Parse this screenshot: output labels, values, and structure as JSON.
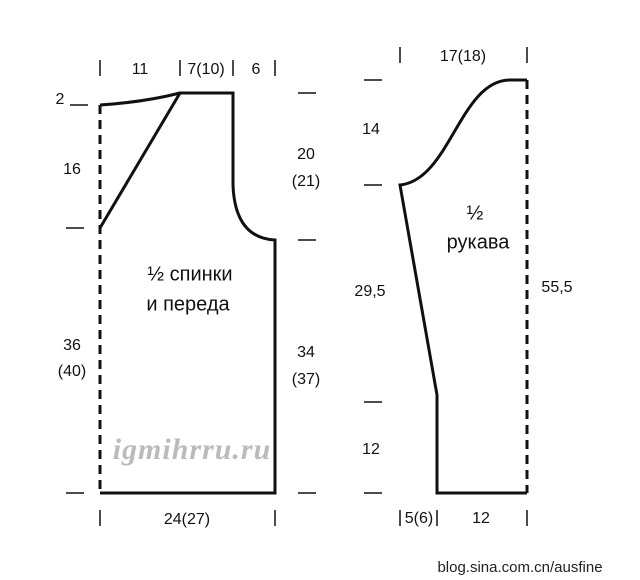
{
  "body_piece": {
    "top_labels": [
      "11",
      "7(10)",
      "6"
    ],
    "left_labels": [
      "2",
      "16",
      "36",
      "(40)"
    ],
    "right_labels": [
      "20",
      "(21)",
      "34",
      "(37)"
    ],
    "title": [
      "½ спинки",
      "и переда"
    ],
    "bottom_label": "24(27)"
  },
  "sleeve": {
    "top_label": "17(18)",
    "left_labels": [
      "14",
      "29,5",
      "12"
    ],
    "right_label": "55,5",
    "title": [
      "½",
      "рукава"
    ],
    "bottom_labels": [
      "5(6)",
      "12"
    ]
  },
  "watermark": "igmihrru.ru",
  "footer": "blog.sina.com.cn/ausfine"
}
